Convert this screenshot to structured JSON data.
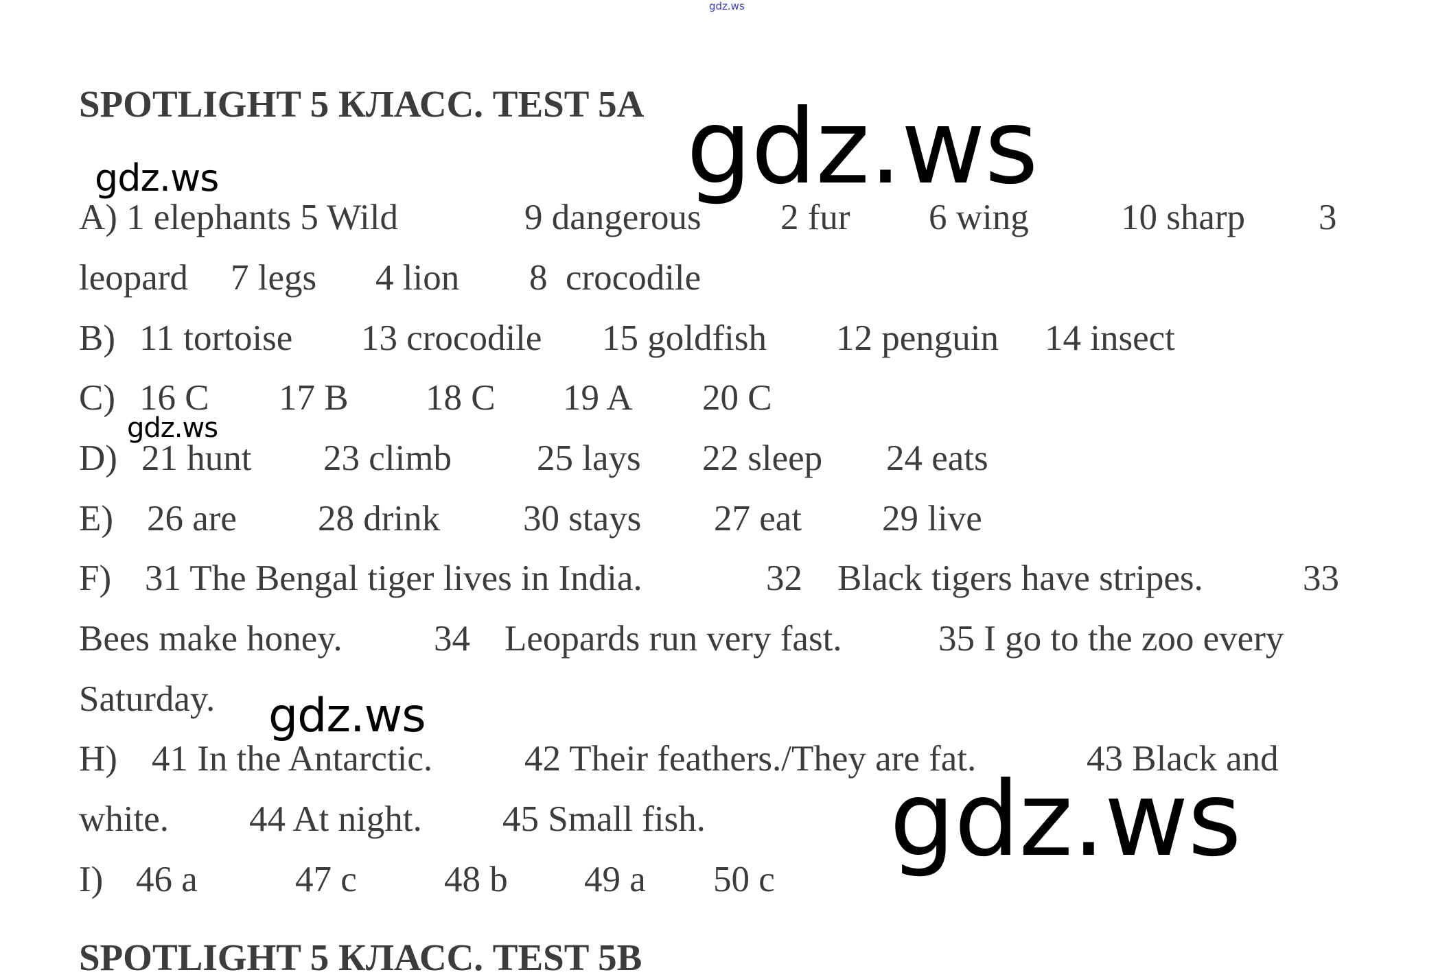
{
  "header": {
    "site_mark": "gdz.ws"
  },
  "title": "SPOTLIGHT 5 КЛАСС. TEST 5A",
  "next_title": "SPOTLIGHT 5 КЛАСС. TEST 5B",
  "watermarks": [
    "gdz.ws",
    "gdz.ws",
    "gdz.ws",
    "gdz.ws",
    "gdz.ws"
  ],
  "lines": [
    [
      "A) 1 elephants 5 Wild",
      "9 dangerous",
      "2 fur",
      "6 wing",
      "10 sharp",
      "3"
    ],
    [
      "leopard",
      "7 legs",
      "4 lion",
      "8  crocodile"
    ],
    [
      "B)",
      "11 tortoise",
      "13 crocodile",
      "15 goldfish",
      "12 penguin",
      "14 insect"
    ],
    [
      "C)",
      "16 C",
      "17 B",
      "18 C",
      "19 A",
      "20 C"
    ],
    [
      "D)",
      "21 hunt",
      "23 climb",
      "25 lays",
      "22 sleep",
      "24 eats"
    ],
    [
      "E)",
      "26 are",
      "28 drink",
      "30 stays",
      "27 eat",
      "29 live"
    ],
    [
      "F)",
      "31 The Bengal tiger lives in India.",
      "32",
      "Black tigers have stripes.",
      "33"
    ],
    [
      "Bees make honey.",
      "34",
      "Leopards run very fast.",
      "35 I go to the zoo every"
    ],
    [
      "Saturday."
    ],
    [
      "H)",
      "41 In the Antarctic.",
      "42 Their feathers./They are fat.",
      "43 Black and"
    ],
    [
      "white.",
      "44 At night.",
      "45 Small fish."
    ],
    [
      "I)",
      "46 a",
      "47 c",
      "48 b",
      "49 a",
      "50 c"
    ]
  ]
}
